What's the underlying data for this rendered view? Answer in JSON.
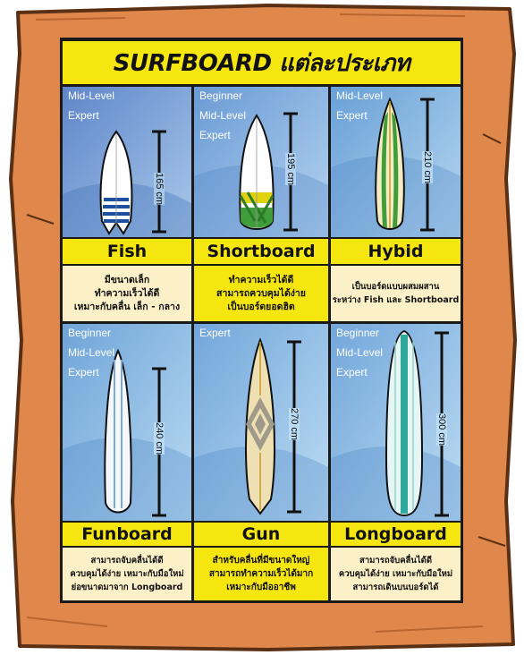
{
  "title": "SURFBOARD แต่ละประเภท",
  "colors": {
    "frame_wood": "#e0874c",
    "frame_outline": "#5a3015",
    "yellow": "#f6e610",
    "cream": "#fbf0c8",
    "sky_top": "#6f9fd6",
    "sky_bottom": "#a9cdee"
  },
  "boards": [
    {
      "name": "Fish",
      "length": "165 cm",
      "levels": [
        "Mid-Level",
        "Expert"
      ],
      "desc": [
        "มีขนาดเล็ก",
        "ทำความเร็วได้ดี",
        "เหมาะกับคลื่น เล็ก - กลาง"
      ],
      "desc_bg": "cream"
    },
    {
      "name": "Shortboard",
      "length": "195 cm",
      "levels": [
        "Beginner",
        "Mid-Level",
        "Expert"
      ],
      "desc": [
        "ทำความเร็วได้ดี",
        "สามารถควบคุมได้ง่าย",
        "เป็นบอร์ดยอดฮิต"
      ],
      "desc_bg": "yellow"
    },
    {
      "name": "Hybid",
      "length": "210 cm",
      "levels": [
        "Mid-Level",
        "Expert"
      ],
      "desc": [
        "เป็นบอร์ดแบบผสมผสาน",
        "ระหว่าง Fish และ  Shortboard"
      ],
      "desc_bg": "cream"
    },
    {
      "name": "Funboard",
      "length": "240 cm",
      "levels": [
        "Beginner",
        "Mid-Level",
        "Expert"
      ],
      "desc": [
        "สามารถจับคลื่นได้ดี",
        "ควบคุมได้ง่าย เหมาะกับมือใหม่",
        "ย่อขนาดมาจาก Longboard"
      ],
      "desc_bg": "cream"
    },
    {
      "name": "Gun",
      "length": "270 cm",
      "levels": [
        "Expert"
      ],
      "desc": [
        "สำหรับคลื่นที่มีขนาดใหญ่",
        "สามารถทำความเร็วได้มาก",
        "เหมาะกับมืออาชีพ"
      ],
      "desc_bg": "yellow"
    },
    {
      "name": "Longboard",
      "length": "300 cm",
      "levels": [
        "Beginner",
        "Mid-Level",
        "Expert"
      ],
      "desc": [
        "สามารถจับคลื่นได้ดี",
        "ควบคุมได้ง่าย เหมาะกับมือใหม่",
        "สามารถเดินบนบอร์ดได้"
      ],
      "desc_bg": "cream"
    }
  ],
  "icons": [
    "fish-surfboard-icon",
    "shortboard-icon",
    "hybrid-surfboard-icon",
    "funboard-icon",
    "gun-surfboard-icon",
    "longboard-icon",
    "length-ruler-icon"
  ]
}
